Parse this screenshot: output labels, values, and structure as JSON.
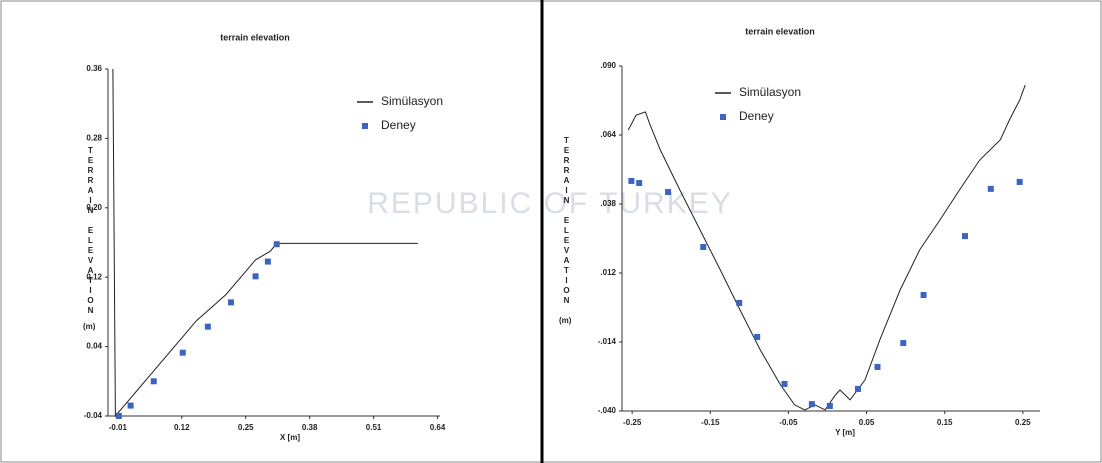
{
  "watermark": "REPUBLIC OF TURKEY",
  "chart_data": [
    {
      "type": "line",
      "title": "terrain elevation",
      "x_label": "X [m]",
      "y_label": "TERRAIN ELEVATION",
      "y_unit": "(m)",
      "xlim": [
        -0.03,
        0.645
      ],
      "ylim": [
        -0.04,
        0.36
      ],
      "xticks": [
        -0.01,
        0.12,
        0.25,
        0.38,
        0.51,
        0.64
      ],
      "yticks": [
        -0.04,
        0.04,
        0.12,
        {
          "value": 0.2,
          "label": "0.20"
        },
        0.28,
        0.36
      ],
      "series": [
        {
          "name": "Simülasyon",
          "type": "line",
          "color": "#222222",
          "x": [
            -0.02,
            -0.015,
            0.0,
            0.03,
            0.06,
            0.09,
            0.12,
            0.15,
            0.18,
            0.21,
            0.24,
            0.27,
            0.3,
            0.313,
            0.6
          ],
          "values": [
            0.36,
            -0.04,
            -0.03,
            -0.01,
            0.01,
            0.03,
            0.05,
            0.07,
            0.085,
            0.1,
            0.12,
            0.14,
            0.15,
            0.159,
            0.159
          ]
        },
        {
          "name": "Deney",
          "type": "scatter",
          "color": "#3a64c0",
          "x": [
            -0.008,
            0.016,
            0.063,
            0.122,
            0.173,
            0.22,
            0.27,
            0.295,
            0.313
          ],
          "values": [
            -0.04,
            -0.028,
            0.0,
            0.033,
            0.063,
            0.091,
            0.121,
            0.138,
            0.158
          ]
        }
      ]
    },
    {
      "type": "line",
      "title": "terrain elevation",
      "x_label": "Y [m]",
      "y_label": "TERRAIN ELEVATION",
      "y_unit": "(m)",
      "xlim": [
        -0.263,
        0.272
      ],
      "ylim": [
        -0.04,
        0.09
      ],
      "xticks": [
        -0.25,
        -0.15,
        -0.05,
        0.05,
        0.15,
        0.25
      ],
      "yticks": [
        {
          "value": -0.04,
          "label": "-.040"
        },
        {
          "value": -0.014,
          "label": "-.014"
        },
        {
          "value": 0.012,
          "label": ".012"
        },
        {
          "value": 0.038,
          "label": ".038"
        },
        {
          "value": 0.064,
          "label": ".064"
        },
        {
          "value": 0.09,
          "label": ".090"
        }
      ],
      "series": [
        {
          "name": "Simülasyon",
          "type": "line",
          "color": "#222222",
          "x": [
            -0.255,
            -0.245,
            -0.233,
            -0.227,
            -0.214,
            -0.189,
            -0.163,
            -0.137,
            -0.112,
            -0.086,
            -0.06,
            -0.042,
            -0.029,
            -0.016,
            -0.003,
            0.01,
            0.016,
            0.029,
            0.048,
            0.067,
            0.093,
            0.118,
            0.144,
            0.169,
            0.195,
            0.221,
            0.233,
            0.246,
            0.253
          ],
          "values": [
            0.0659,
            0.0715,
            0.0727,
            0.0678,
            0.0584,
            0.0433,
            0.0282,
            0.0131,
            -0.0019,
            -0.017,
            -0.0302,
            -0.0377,
            -0.0396,
            -0.0377,
            -0.0396,
            -0.034,
            -0.0321,
            -0.0358,
            -0.0283,
            -0.0132,
            0.0056,
            0.0207,
            0.032,
            0.0433,
            0.0546,
            0.0621,
            0.0697,
            0.0772,
            0.0828
          ]
        },
        {
          "name": "Deney",
          "type": "scatter",
          "color": "#3a64c0",
          "x": [
            -0.251,
            -0.241,
            -0.204,
            -0.159,
            -0.113,
            -0.09,
            -0.055,
            -0.02,
            0.003,
            0.039,
            0.064,
            0.097,
            0.123,
            0.176,
            0.209,
            0.246
          ],
          "values": [
            0.0467,
            0.0459,
            0.0425,
            0.0218,
            0.0007,
            -0.0121,
            -0.0298,
            -0.0374,
            -0.0381,
            -0.0317,
            -0.0234,
            -0.0144,
            0.0037,
            0.0259,
            0.0437,
            0.0463
          ]
        }
      ]
    }
  ]
}
